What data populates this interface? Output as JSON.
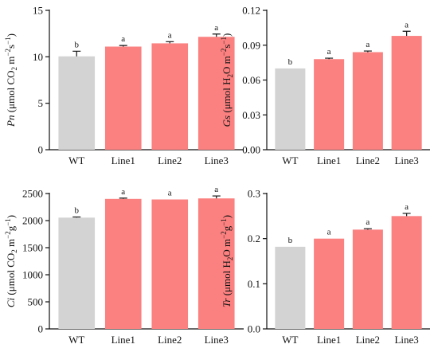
{
  "colors": {
    "wt": "#d3d3d3",
    "line": "#fb8080",
    "axis": "#111111"
  },
  "chart_data": [
    {
      "type": "bar",
      "categories": [
        "WT",
        "Line1",
        "Line2",
        "Line3"
      ],
      "values": [
        10.05,
        11.1,
        11.45,
        12.15
      ],
      "errors": [
        0.55,
        0.12,
        0.18,
        0.3
      ],
      "significance": [
        "b",
        "a",
        "a",
        "a"
      ],
      "ylim": [
        0,
        15
      ],
      "yticks": [
        "0",
        "5",
        "10",
        "15"
      ],
      "ylabel": {
        "var": "Pn",
        "pre": " (μmol CO",
        "sub": "2",
        "mid": " m",
        "sup1": "−2",
        "mid2": "s",
        "sup2": "−1",
        "post": ")"
      }
    },
    {
      "type": "bar",
      "categories": [
        "WT",
        "Line1",
        "Line2",
        "Line3"
      ],
      "values": [
        0.07,
        0.078,
        0.084,
        0.098
      ],
      "errors": [
        0.0,
        0.0008,
        0.001,
        0.004
      ],
      "significance": [
        "b",
        "a",
        "a",
        "a"
      ],
      "ylim": [
        0,
        0.12
      ],
      "yticks": [
        "0.00",
        "0.03",
        "0.06",
        "0.09",
        "0.12"
      ],
      "ylabel": {
        "var": "Gs",
        "pre": " (μmol H",
        "sub": "2",
        "mid": "O m",
        "sup1": "−2",
        "mid2": "s",
        "sup2": "−1",
        "post": ")"
      }
    },
    {
      "type": "bar",
      "categories": [
        "WT",
        "Line1",
        "Line2",
        "Line3"
      ],
      "values": [
        2055,
        2400,
        2390,
        2410
      ],
      "errors": [
        12,
        15,
        0,
        45
      ],
      "significance": [
        "b",
        "a",
        "a",
        "a"
      ],
      "ylim": [
        0,
        2500
      ],
      "yticks": [
        "0",
        "500",
        "1000",
        "1500",
        "2000",
        "2500"
      ],
      "ylabel": {
        "var": "Ci",
        "pre": " (μmol CO",
        "sub": "2",
        "mid": " m",
        "sup1": "−2",
        "mid2": "g",
        "sup2": "−1",
        "post": ")"
      }
    },
    {
      "type": "bar",
      "categories": [
        "WT",
        "Line1",
        "Line2",
        "Line3"
      ],
      "values": [
        0.182,
        0.2,
        0.22,
        0.25
      ],
      "errors": [
        0.0,
        0.0,
        0.002,
        0.006
      ],
      "significance": [
        "b",
        "a",
        "a",
        "a"
      ],
      "ylim": [
        0,
        0.3
      ],
      "yticks": [
        "0.0",
        "0.1",
        "0.2",
        "0.3"
      ],
      "ylabel": {
        "var": "Tr",
        "pre": " (μmol H",
        "sub": "2",
        "mid": "O m",
        "sup1": "−2",
        "mid2": "g",
        "sup2": "−1",
        "post": ")"
      }
    }
  ]
}
